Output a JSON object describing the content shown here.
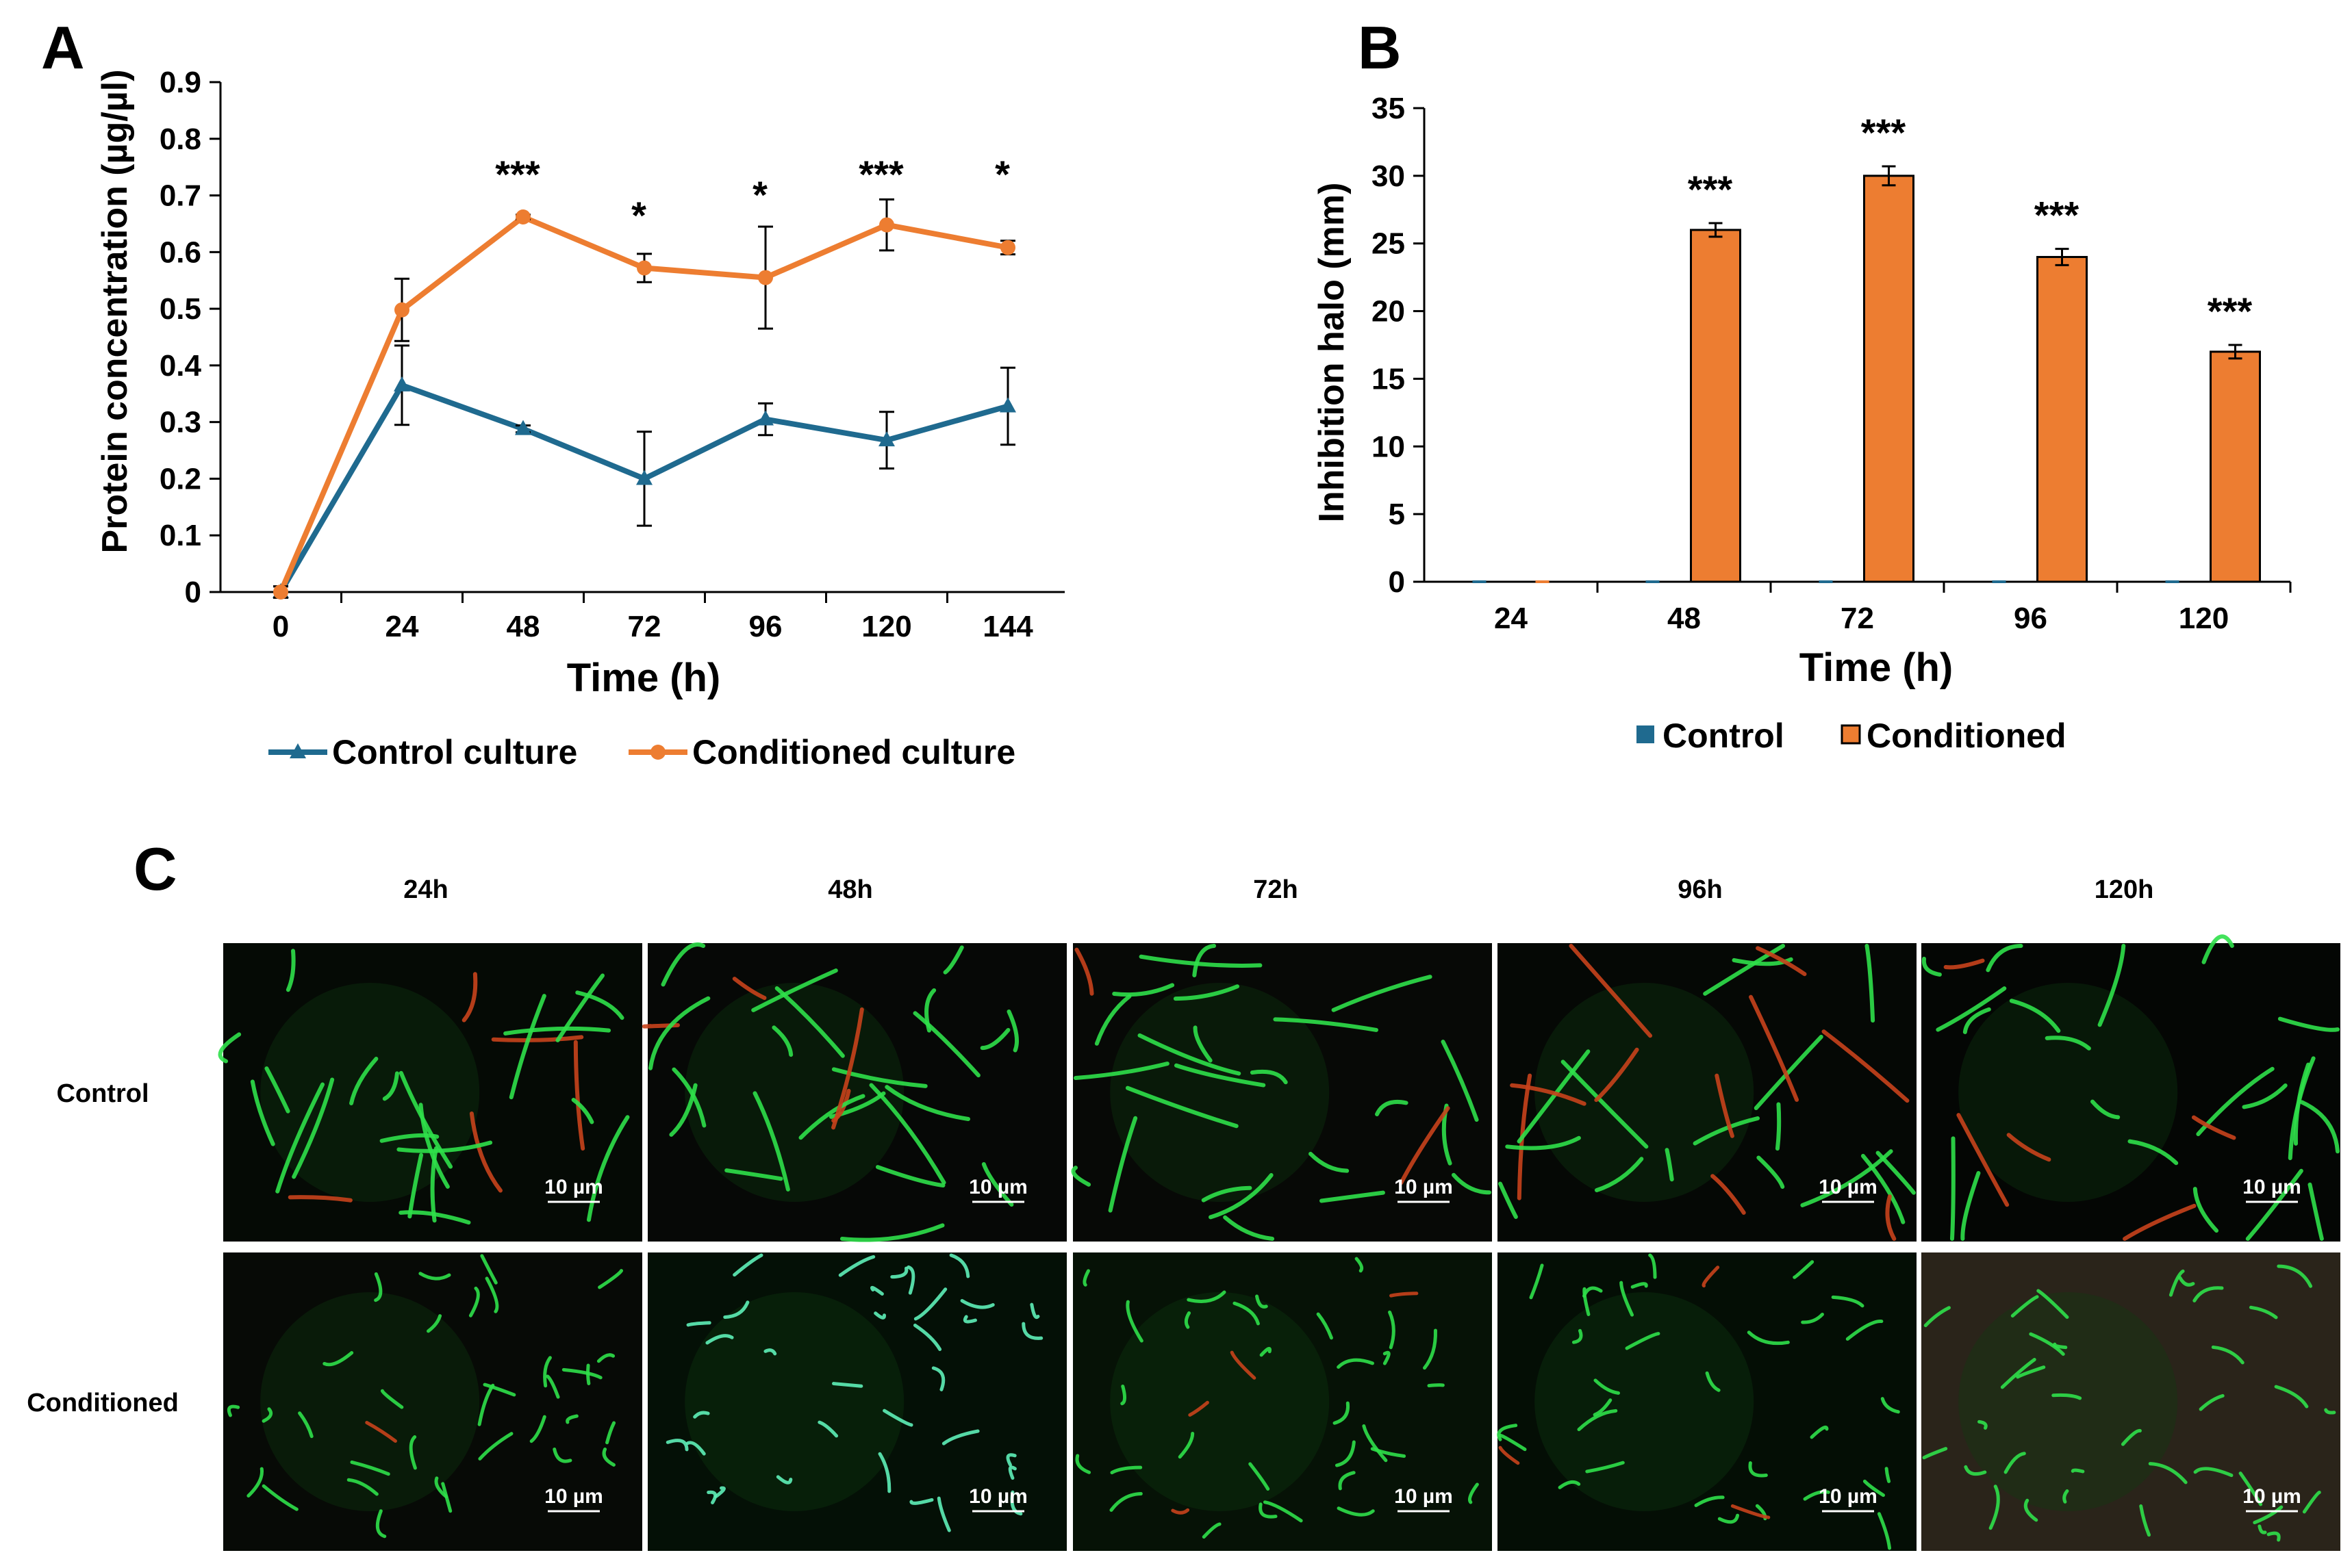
{
  "colors": {
    "control": "#1f6a8f",
    "conditioned": "#ed7d31",
    "axis": "#000000",
    "micrograph_bg": "#050805",
    "fluor_green": "#2fe04a",
    "fluor_red": "#c8431c",
    "scale_text": "#ffffff"
  },
  "chart_data": [
    {
      "panel": "A",
      "type": "line",
      "title": "",
      "xlabel": "Time (h)",
      "ylabel": "Protein concentration (µg/µl)",
      "x": [
        0,
        24,
        48,
        72,
        96,
        120,
        144
      ],
      "x_ticks": [
        "0",
        "24",
        "48",
        "72",
        "96",
        "120",
        "144"
      ],
      "ylim": [
        0,
        0.9
      ],
      "y_ticks": [
        "0",
        "0.1",
        "0.2",
        "0.3",
        "0.4",
        "0.5",
        "0.6",
        "0.7",
        "0.8",
        "0.9"
      ],
      "grid": false,
      "legend_position": "bottom",
      "series": [
        {
          "name": "Control culture",
          "color_key": "control",
          "marker": "triangle",
          "values": [
            0.0,
            0.365,
            0.288,
            0.2,
            0.305,
            0.268,
            0.328
          ],
          "errors": [
            0.01,
            0.07,
            0.006,
            0.083,
            0.028,
            0.05,
            0.068
          ]
        },
        {
          "name": "Conditioned culture",
          "color_key": "conditioned",
          "marker": "circle",
          "values": [
            0.0,
            0.498,
            0.662,
            0.572,
            0.555,
            0.648,
            0.608
          ],
          "errors": [
            0.01,
            0.055,
            0.004,
            0.025,
            0.09,
            0.045,
            0.012
          ]
        }
      ],
      "significance": [
        "",
        "",
        "***",
        "*",
        "*",
        "***",
        "*"
      ]
    },
    {
      "panel": "B",
      "type": "bar",
      "title": "",
      "xlabel": "Time (h)",
      "ylabel": "Inhibition halo (mm)",
      "categories": [
        "24",
        "48",
        "72",
        "96",
        "120"
      ],
      "ylim": [
        0,
        35
      ],
      "y_ticks": [
        "0",
        "5",
        "10",
        "15",
        "20",
        "25",
        "30",
        "35"
      ],
      "grid": false,
      "legend_position": "bottom",
      "series": [
        {
          "name": "Control",
          "color_key": "control",
          "values": [
            0,
            0,
            0,
            0,
            0
          ],
          "errors": [
            0,
            0,
            0,
            0,
            0
          ]
        },
        {
          "name": "Conditioned",
          "color_key": "conditioned",
          "values": [
            0,
            26,
            30,
            24,
            17
          ],
          "errors": [
            0,
            0.5,
            0.7,
            0.6,
            0.5
          ]
        }
      ],
      "significance": [
        "",
        "***",
        "***",
        "***",
        "***"
      ]
    }
  ],
  "panel_c": {
    "letter": "C",
    "columns": [
      "24h",
      "48h",
      "72h",
      "96h",
      "120h"
    ],
    "rows": [
      "Control",
      "Conditioned"
    ],
    "scale_bar_label": "10 µm"
  }
}
